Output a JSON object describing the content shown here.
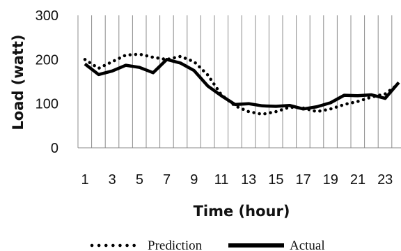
{
  "chart_data": {
    "type": "line",
    "xlabel": "Time  (hour)",
    "ylabel": "Load  (watt)",
    "x": [
      1,
      2,
      3,
      4,
      5,
      6,
      7,
      8,
      9,
      10,
      11,
      12,
      13,
      14,
      15,
      16,
      17,
      18,
      19,
      20,
      21,
      22,
      23,
      24
    ],
    "x_ticks": [
      "1",
      "3",
      "5",
      "7",
      "9",
      "11",
      "13",
      "15",
      "17",
      "19",
      "21",
      "23"
    ],
    "y_ticks": [
      "300",
      "200",
      "100",
      "0"
    ],
    "ylim": [
      0,
      300
    ],
    "xlim": [
      0.5,
      24
    ],
    "grid": "vertical",
    "legend_position": "bottom",
    "series": [
      {
        "name": "Prediction",
        "style": "dotted",
        "color": "#000000",
        "values": [
          200,
          180,
          195,
          210,
          212,
          205,
          200,
          207,
          195,
          165,
          120,
          95,
          82,
          76,
          82,
          92,
          90,
          82,
          88,
          98,
          105,
          115,
          122,
          145
        ]
      },
      {
        "name": "Actual",
        "style": "solid",
        "color": "#000000",
        "values": [
          190,
          166,
          174,
          187,
          182,
          170,
          200,
          192,
          175,
          140,
          118,
          98,
          100,
          95,
          94,
          96,
          88,
          93,
          102,
          119,
          118,
          120,
          112,
          148
        ]
      }
    ]
  }
}
